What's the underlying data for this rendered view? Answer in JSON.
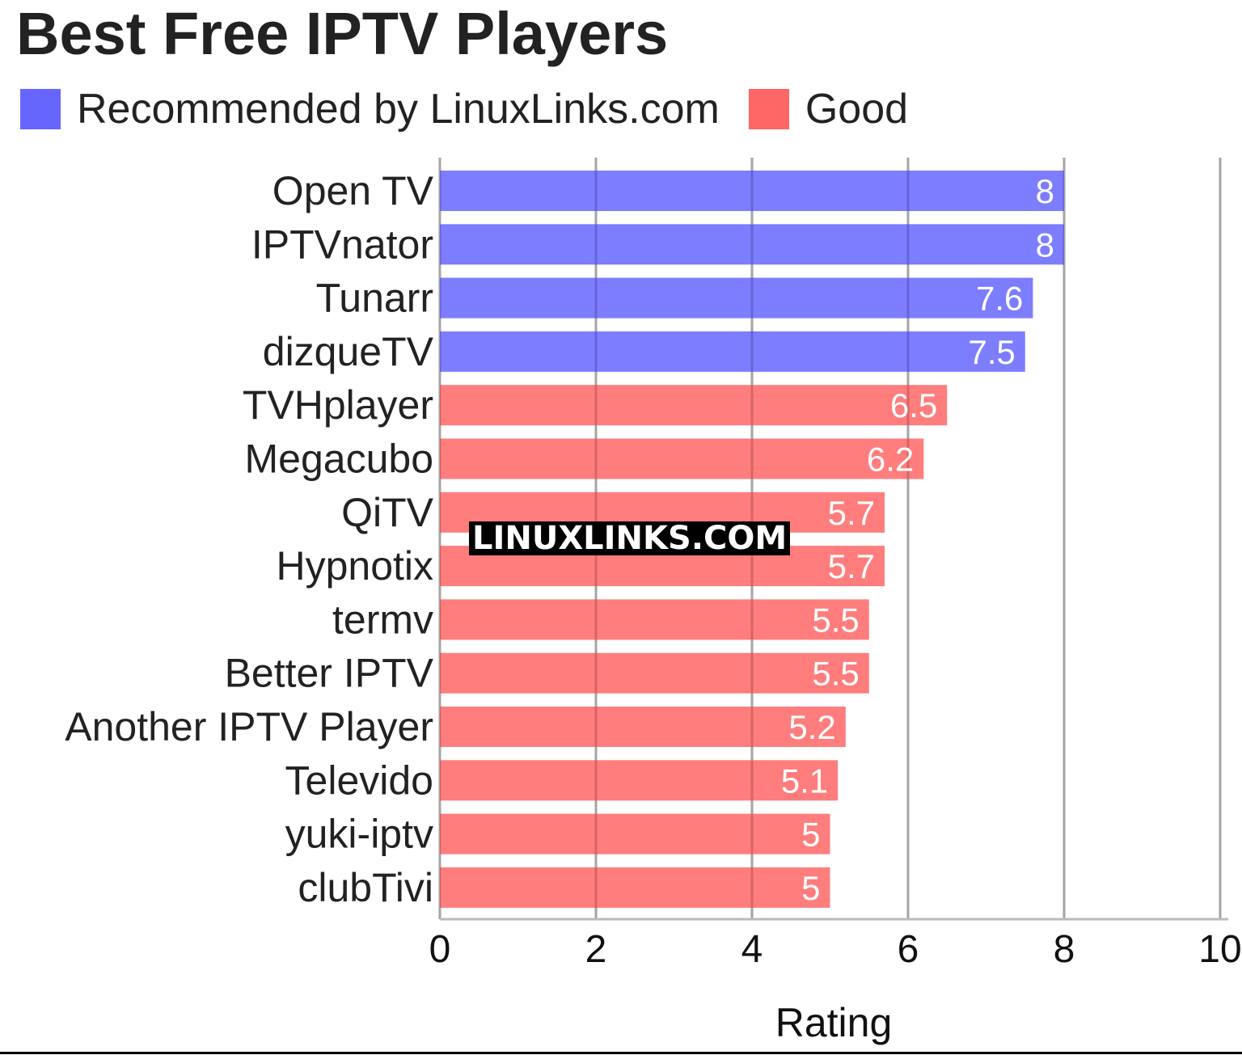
{
  "chart_data": {
    "type": "bar",
    "orientation": "horizontal",
    "title": "Best Free IPTV Players",
    "xlabel": "Rating",
    "ylabel": "",
    "xlim": [
      0,
      10
    ],
    "x_ticks": [
      "0",
      "2",
      "4",
      "6",
      "8",
      "10"
    ],
    "grid": true,
    "legend_position": "top-left",
    "legend": [
      {
        "label": "Recommended by LinuxLinks.com",
        "color": "#6666ff"
      },
      {
        "label": "Good",
        "color": "#ff6666"
      }
    ],
    "categories": [
      "Open TV",
      "IPTVnator",
      "Tunarr",
      "dizqueTV",
      "TVHplayer",
      "Megacubo",
      "QiTV",
      "Hypnotix",
      "termv",
      "Better IPTV",
      "Another IPTV Player",
      "Televido",
      "yuki-iptv",
      "clubTivi"
    ],
    "values": [
      8,
      8,
      7.6,
      7.5,
      6.5,
      6.2,
      5.7,
      5.7,
      5.5,
      5.5,
      5.2,
      5.1,
      5,
      5
    ],
    "value_labels": [
      "8",
      "8",
      "7.6",
      "7.5",
      "6.5",
      "6.2",
      "5.7",
      "5.7",
      "5.5",
      "5.5",
      "5.2",
      "5.1",
      "5",
      "5"
    ],
    "groups": [
      "Recommended by LinuxLinks.com",
      "Recommended by LinuxLinks.com",
      "Recommended by LinuxLinks.com",
      "Recommended by LinuxLinks.com",
      "Good",
      "Good",
      "Good",
      "Good",
      "Good",
      "Good",
      "Good",
      "Good",
      "Good",
      "Good"
    ]
  },
  "watermark": "LINUXLINKS.COM"
}
